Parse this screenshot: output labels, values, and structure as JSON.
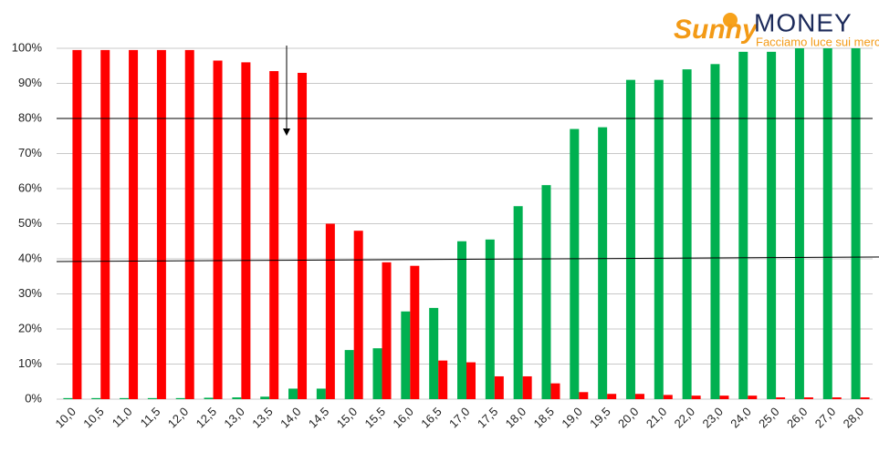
{
  "logo": {
    "brand": "Sunny",
    "name": "MONEY",
    "tagline": "Facciamo luce sui mercati"
  },
  "chart_data": {
    "type": "bar",
    "categories": [
      "10,0",
      "10,5",
      "11,0",
      "11,5",
      "12,0",
      "12,5",
      "13,0",
      "13,5",
      "14,0",
      "14,5",
      "15,0",
      "15,5",
      "16,0",
      "16,5",
      "17,0",
      "17,5",
      "18,0",
      "18,5",
      "19,0",
      "19,5",
      "20,0",
      "21,0",
      "22,0",
      "23,0",
      "24,0",
      "25,0",
      "26,0",
      "27,0",
      "28,0"
    ],
    "series": [
      {
        "color": "#00b050",
        "values": [
          0.3,
          0.3,
          0.3,
          0.3,
          0.3,
          0.4,
          0.5,
          0.7,
          3,
          3,
          14,
          14.5,
          25,
          26,
          45,
          45.5,
          55,
          61,
          77,
          77.5,
          91,
          91,
          94,
          95.5,
          99,
          99,
          100,
          100,
          100
        ]
      },
      {
        "color": "#ff0000",
        "values": [
          99.5,
          99.5,
          99.5,
          99.5,
          99.5,
          96.5,
          96,
          93.5,
          93,
          50,
          48,
          39,
          38,
          11,
          10.5,
          6.5,
          6.5,
          4.5,
          2,
          1.5,
          1.5,
          1.2,
          1,
          1,
          1,
          0.5,
          0.5,
          0.5,
          0.5
        ]
      }
    ],
    "ylim": [
      0,
      100
    ],
    "yticks": [
      {
        "value": 0,
        "label": "0%"
      },
      {
        "value": 10,
        "label": "10%"
      },
      {
        "value": 20,
        "label": "20%"
      },
      {
        "value": 30,
        "label": "30%"
      },
      {
        "value": 40,
        "label": "40%"
      },
      {
        "value": 50,
        "label": "50%"
      },
      {
        "value": 60,
        "label": "60%"
      },
      {
        "value": 70,
        "label": "70%"
      },
      {
        "value": 80,
        "label": "80%"
      },
      {
        "value": 90,
        "label": "90%"
      },
      {
        "value": 100,
        "label": "100%"
      }
    ],
    "grid": true
  }
}
